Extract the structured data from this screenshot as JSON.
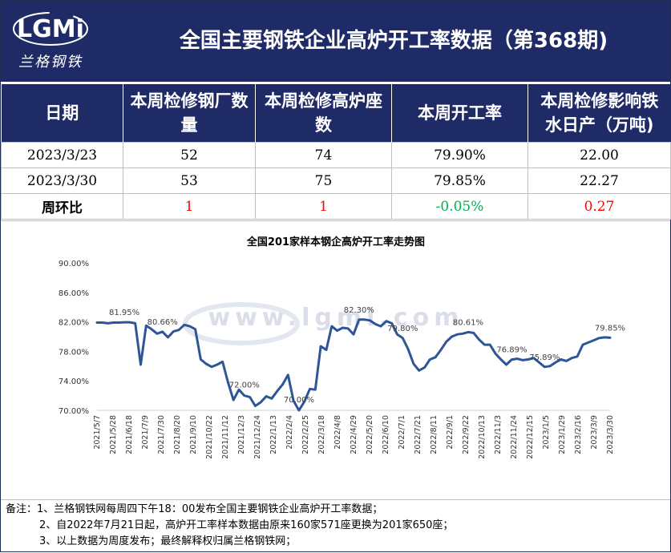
{
  "header": {
    "logo_text": "LGMi",
    "logo_sub": "兰格钢铁",
    "title": "全国主要钢铁企业高炉开工率数据（第368期)"
  },
  "table": {
    "headers": [
      "日期",
      "本周检修钢厂数量",
      "本周检修高炉座数",
      "本周开工率",
      "本周检修影响铁水日产（万吨)"
    ],
    "rows": [
      [
        "2023/3/23",
        "52",
        "74",
        "79.90%",
        "22.00"
      ],
      [
        "2023/3/30",
        "53",
        "75",
        "79.85%",
        "22.27"
      ],
      [
        "周环比",
        "1",
        "1",
        "-0.05%",
        "0.27"
      ]
    ]
  },
  "colors": {
    "header_bg": "#1f2b66",
    "line": "#2e5597",
    "up": "#ff0000",
    "down": "#00b050"
  },
  "watermark": "www.lgmi.com",
  "chart_data": {
    "type": "line",
    "title": "全国201家样本钢企高炉开工率走势图",
    "xlabel": "",
    "ylabel": "",
    "ylim": [
      70,
      90
    ],
    "yticks": [
      "70.00%",
      "74.00%",
      "78.00%",
      "82.00%",
      "86.00%",
      "90.00%"
    ],
    "grid": false,
    "tick_labels": [
      "2021/5/7",
      "2021/5/28",
      "2021/6/18",
      "2021/7/9",
      "2021/7/30",
      "2021/8/20",
      "2021/9/10",
      "2021/10/22",
      "2021/11/12",
      "2021/12/3",
      "2021/12/24",
      "2022/1/13",
      "2022/2/4",
      "2022/2/25",
      "2022/3/18",
      "2022/4/8",
      "2022/4/29",
      "2022/5/20",
      "2022/6/10",
      "2022/7/1",
      "2022/7/21",
      "2022/8/11",
      "2022/9/1",
      "2022/9/22",
      "2022/10/13",
      "2022/11/3",
      "2022/11/24",
      "2022/12/15",
      "2023/1/5",
      "2023/1/29",
      "2023/2/16",
      "2023/3/9",
      "2023/3/30"
    ],
    "values": [
      81.9,
      81.9,
      81.8,
      81.9,
      81.9,
      81.95,
      81.95,
      81.8,
      76.2,
      81.5,
      81.0,
      80.4,
      80.66,
      79.9,
      80.7,
      80.9,
      81.6,
      81.4,
      81.0,
      76.9,
      76.3,
      75.9,
      76.2,
      76.6,
      73.8,
      71.4,
      72.8,
      72.0,
      71.8,
      70.6,
      71.1,
      71.9,
      71.6,
      72.6,
      73.5,
      74.8,
      71.3,
      70.0,
      71.2,
      72.9,
      72.8,
      78.7,
      78.2,
      81.4,
      80.8,
      81.2,
      81.1,
      80.3,
      82.3,
      82.3,
      82.2,
      81.7,
      81.4,
      82.1,
      81.8,
      80.3,
      79.8,
      78.3,
      76.3,
      75.4,
      75.8,
      76.9,
      77.2,
      78.2,
      79.3,
      80.0,
      80.3,
      80.4,
      80.61,
      80.5,
      79.6,
      78.9,
      78.9,
      77.7,
      76.9,
      76.2,
      76.89,
      77.0,
      76.8,
      76.9,
      77.1,
      76.5,
      75.89,
      76.0,
      76.5,
      76.9,
      76.7,
      77.1,
      77.3,
      78.9,
      79.2,
      79.5,
      79.8,
      79.9,
      79.85
    ],
    "annotations": [
      {
        "index": 5,
        "label": "81.95%"
      },
      {
        "index": 12,
        "label": "80.66%"
      },
      {
        "index": 27,
        "label": "72.00%"
      },
      {
        "index": 37,
        "label": "70.00%"
      },
      {
        "index": 48,
        "label": "82.30%"
      },
      {
        "index": 56,
        "label": "79.80%"
      },
      {
        "index": 68,
        "label": "80.61%"
      },
      {
        "index": 76,
        "label": "76.89%"
      },
      {
        "index": 82,
        "label": "75.89%"
      },
      {
        "index": 94,
        "label": "79.85%"
      }
    ]
  },
  "notes": [
    "备注：1、兰格钢铁网每周四下午18：00发布全国主要钢铁企业高炉开工率数据；",
    "2、自2022年7月21日起，高炉开工率样本数据由原来160家571座更换为201家650座；",
    "3、以上数据为周度发布；最终解释权归属兰格钢铁网；"
  ]
}
